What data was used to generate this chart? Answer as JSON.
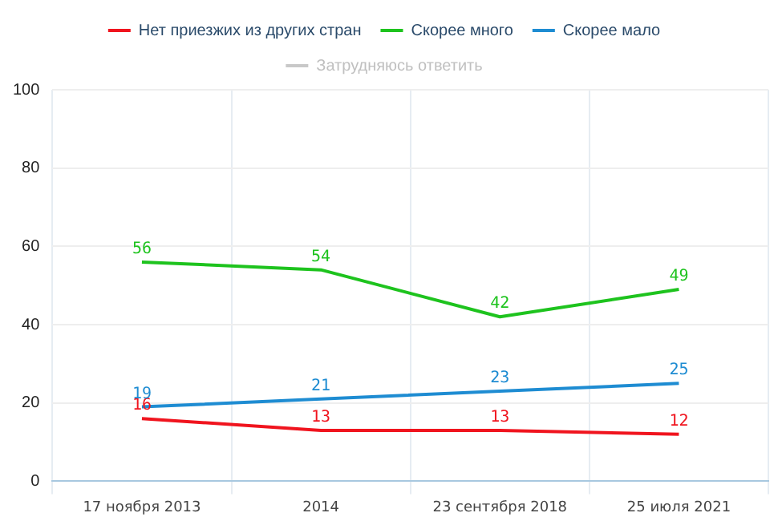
{
  "chart_data": {
    "type": "line",
    "categories": [
      "17 ноября 2013",
      "2014",
      "23 сентября 2018",
      "25 июля 2021"
    ],
    "series": [
      {
        "name": "Нет приезжих из других стран",
        "color": "#f0141e",
        "values": [
          16,
          13,
          13,
          12
        ]
      },
      {
        "name": "Скорее много",
        "color": "#1ec31e",
        "values": [
          56,
          54,
          42,
          49
        ]
      },
      {
        "name": "Скорее мало",
        "color": "#1e8cd2",
        "values": [
          19,
          21,
          23,
          25
        ]
      },
      {
        "name": "Затрудняюсь ответить",
        "color": "#c8c8c8",
        "values": [
          null,
          null,
          null,
          null
        ]
      }
    ],
    "ylim": [
      0,
      100
    ],
    "yticks": [
      0,
      20,
      40,
      60,
      80,
      100
    ],
    "grid": true,
    "legend": "top",
    "data_labels": true,
    "marker": "none",
    "line_style": "solid"
  }
}
